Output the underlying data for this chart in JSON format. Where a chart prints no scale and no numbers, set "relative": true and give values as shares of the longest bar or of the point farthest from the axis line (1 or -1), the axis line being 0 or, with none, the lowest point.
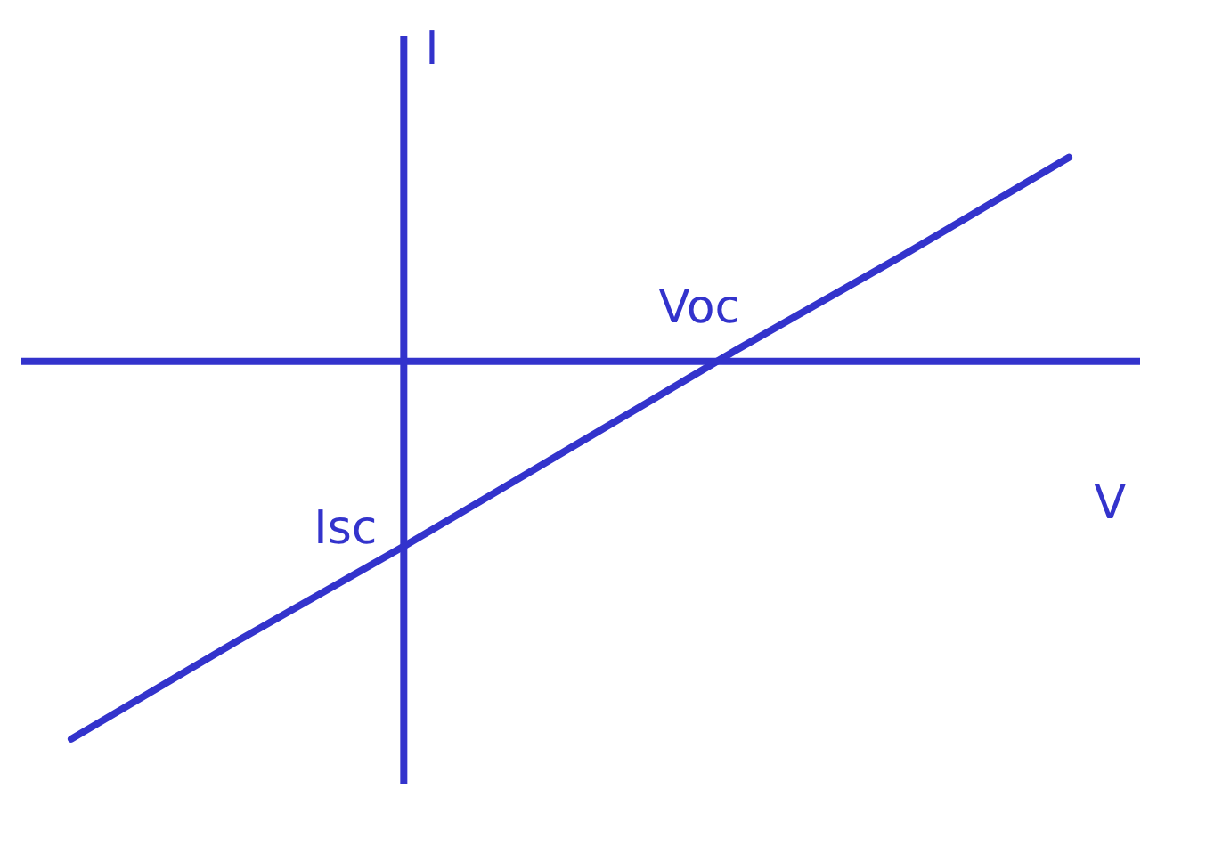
{
  "chart_data": {
    "type": "line",
    "relative": true,
    "xlabel": "V",
    "ylabel": "I",
    "categories": [
      null,
      null,
      null,
      null,
      null,
      null,
      null
    ],
    "series": [
      {
        "color": "#3333cc",
        "values": [
          -1,
          -0.74,
          -0.49,
          -0.23,
          0.03,
          0.28,
          0.54
        ]
      }
    ],
    "ref_lines": [
      {
        "axis": "y",
        "value": 0,
        "color": "#3333cc"
      }
    ],
    "annotations": [
      "Voc",
      "Isc"
    ],
    "marker": "none",
    "line_style": "solid"
  }
}
